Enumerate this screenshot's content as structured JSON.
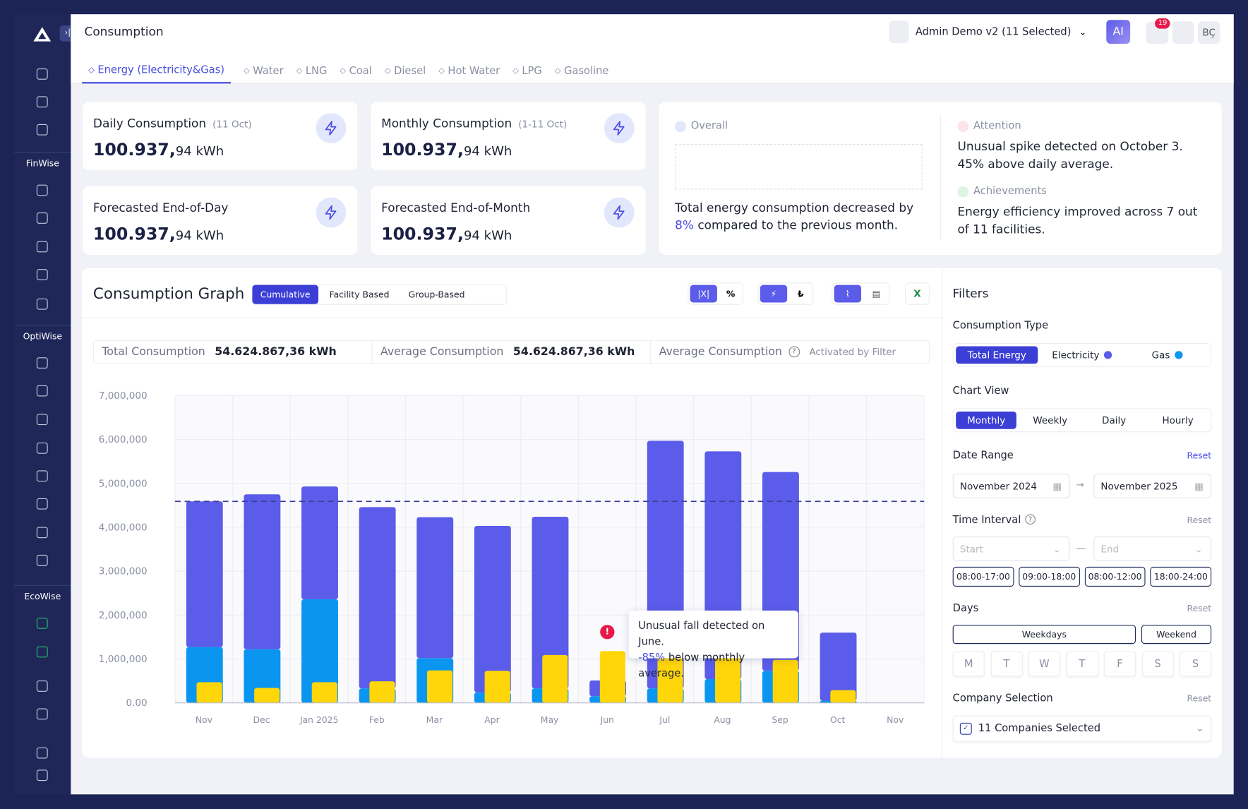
{
  "header": {
    "title": "Consumption",
    "account": "Admin Demo v2 (11 Selected)",
    "ai": "AI",
    "notifications": "19",
    "user": "BÇ"
  },
  "sidebar": {
    "sections": [
      "FinWise",
      "OptiWise",
      "EcoWise"
    ]
  },
  "tabs": [
    "Energy (Electricity&Gas)",
    "Water",
    "LNG",
    "Coal",
    "Diesel",
    "Hot Water",
    "LPG",
    "Gasoline"
  ],
  "cards": [
    {
      "title": "Daily Consumption",
      "period": "(11 Oct)",
      "value": "100.937,",
      "unit": "94 kWh"
    },
    {
      "title": "Monthly Consumption",
      "period": "(1-11 Oct)",
      "value": "100.937,",
      "unit": "94 kWh"
    },
    {
      "title": "Forecasted End-of-Day",
      "value": "100.937,",
      "unit": "94 kWh"
    },
    {
      "title": "Forecasted End-of-Month",
      "value": "100.937,",
      "unit": "94 kWh"
    }
  ],
  "insights": {
    "overall": {
      "label": "Overall",
      "text": "Total energy consumption decreased by",
      "highlight": "8%",
      "text_after": "compared to the previous month."
    },
    "attention": {
      "label": "Attention",
      "text": "Unusual spike detected on October 3. 45% above daily average."
    },
    "achievements": {
      "label": "Achievements",
      "text": "Energy efficiency improved across 7 out of 11 facilities."
    }
  },
  "graph": {
    "title": "Consumption Graph",
    "modes": [
      "Cumulative",
      "Facility Based",
      "Group-Based"
    ],
    "toggles": [
      "|X|",
      "%",
      "₺"
    ],
    "stats": [
      {
        "label": "Total Consumption",
        "value": "54.624.867,36 kWh"
      },
      {
        "label": "Average Consumption",
        "value": "54.624.867,36 kWh"
      },
      {
        "label": "Average Consumption",
        "value": "Activated by Filter"
      }
    ],
    "tooltip": {
      "text": "Unusual fall detected on June.",
      "highlight": "-85%",
      "text_after": "below monthly average.",
      "marker": "!"
    }
  },
  "chart_data": {
    "type": "bar",
    "categories": [
      "Nov",
      "Dec",
      "Jan 2025",
      "Feb",
      "Mar",
      "Apr",
      "May",
      "Jun",
      "Jul",
      "Aug",
      "Sep",
      "Oct",
      "Nov"
    ],
    "series": [
      {
        "color": "#0a96f0",
        "stack": "total",
        "values": [
          1270000,
          1220000,
          2360000,
          330000,
          1020000,
          240000,
          330000,
          150000,
          330000,
          540000,
          730000,
          50000,
          null
        ]
      },
      {
        "color": "#5b5ce9",
        "stack": "total",
        "values": [
          3320000,
          3530000,
          2570000,
          4130000,
          3210000,
          3790000,
          3910000,
          360000,
          5640000,
          5190000,
          4530000,
          1550000,
          null
        ]
      },
      {
        "color": "#ffd60a",
        "values": [
          470000,
          340000,
          470000,
          490000,
          740000,
          730000,
          1090000,
          1180000,
          1050000,
          1050000,
          980000,
          290000,
          null
        ]
      }
    ],
    "reference_line": 4590000,
    "ylim": [
      0,
      7000000
    ],
    "yticks": [
      {
        "value": 0,
        "label": "0.00"
      },
      {
        "value": 1000000,
        "label": "1,000,000"
      },
      {
        "value": 2000000,
        "label": "2,000,000"
      },
      {
        "value": 3000000,
        "label": "3,000,000"
      },
      {
        "value": 4000000,
        "label": "4,000,000"
      },
      {
        "value": 5000000,
        "label": "5,000,000"
      },
      {
        "value": 6000000,
        "label": "6,000,000"
      },
      {
        "value": 7000000,
        "label": "7,000,000"
      }
    ],
    "grid": true
  },
  "filters": {
    "title": "Filters",
    "consumption_type": {
      "label": "Consumption Type",
      "options": [
        "Total Energy",
        "Electricity",
        "Gas"
      ]
    },
    "chart_view": {
      "label": "Chart View",
      "options": [
        "Monthly",
        "Weekly",
        "Daily",
        "Hourly"
      ]
    },
    "date_range": {
      "label": "Date Range",
      "reset": "Reset",
      "from": "November 2024",
      "to": "November 2025"
    },
    "time_interval": {
      "label": "Time Interval",
      "reset": "Reset",
      "start": "Start",
      "end": "End",
      "slots": [
        "08:00-17:00",
        "09:00-18:00",
        "08:00-12:00",
        "18:00-24:00"
      ]
    },
    "days": {
      "label": "Days",
      "reset": "Reset",
      "groups": [
        "Weekdays",
        "Weekend"
      ],
      "letters": [
        "M",
        "T",
        "W",
        "T",
        "F",
        "S",
        "S"
      ]
    },
    "company": {
      "label": "Company Selection",
      "reset": "Reset",
      "value": "11 Companies Selected"
    }
  }
}
